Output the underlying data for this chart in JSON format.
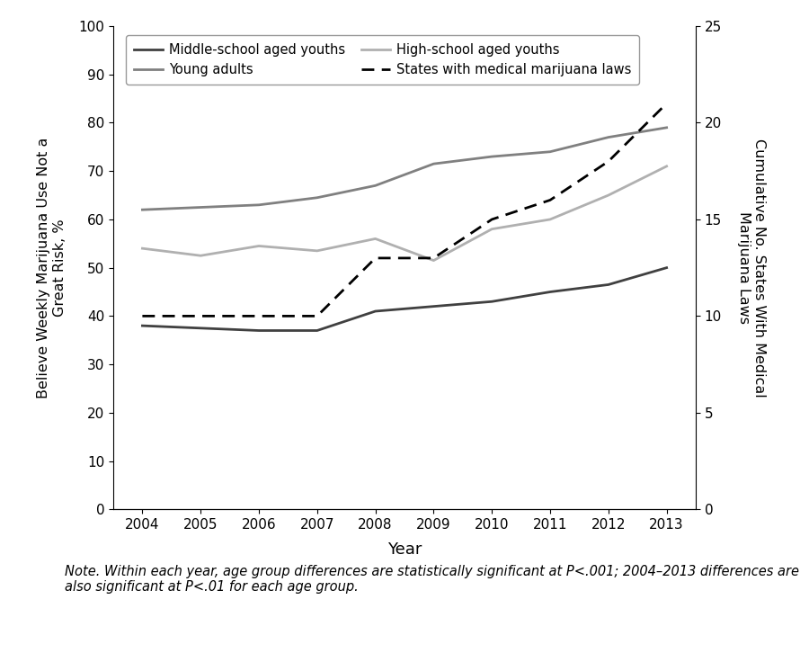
{
  "years": [
    2004,
    2005,
    2006,
    2007,
    2008,
    2009,
    2010,
    2011,
    2012,
    2013
  ],
  "middle_school": [
    38,
    37.5,
    37,
    37,
    41,
    42,
    43,
    45,
    46.5,
    50
  ],
  "high_school": [
    54,
    52.5,
    54.5,
    53.5,
    56,
    51.5,
    58,
    60,
    65,
    71
  ],
  "young_adults": [
    62,
    62.5,
    63,
    64.5,
    67,
    71.5,
    73,
    74,
    77,
    79
  ],
  "states_mml": [
    10,
    10,
    10,
    10,
    13,
    13,
    15,
    16,
    18,
    21
  ],
  "middle_school_color": "#404040",
  "high_school_color": "#b0b0b0",
  "young_adults_color": "#808080",
  "states_mml_color": "#000000",
  "ylabel_left": "Believe Weekly Marijuana Use Not a\nGreat Risk, %",
  "ylabel_right": "Cumulative No. States With Medical\nMarijuana Laws",
  "xlabel": "Year",
  "ylim_left": [
    0,
    100
  ],
  "ylim_right": [
    0,
    25
  ],
  "yticks_left": [
    0,
    10,
    20,
    30,
    40,
    50,
    60,
    70,
    80,
    90,
    100
  ],
  "yticks_right": [
    0,
    5,
    10,
    15,
    20,
    25
  ],
  "legend_row1": [
    "Middle-school aged youths",
    "Young adults"
  ],
  "legend_row2": [
    "High-school aged youths",
    "States with medical marijuana laws"
  ],
  "background_color": "#ffffff"
}
